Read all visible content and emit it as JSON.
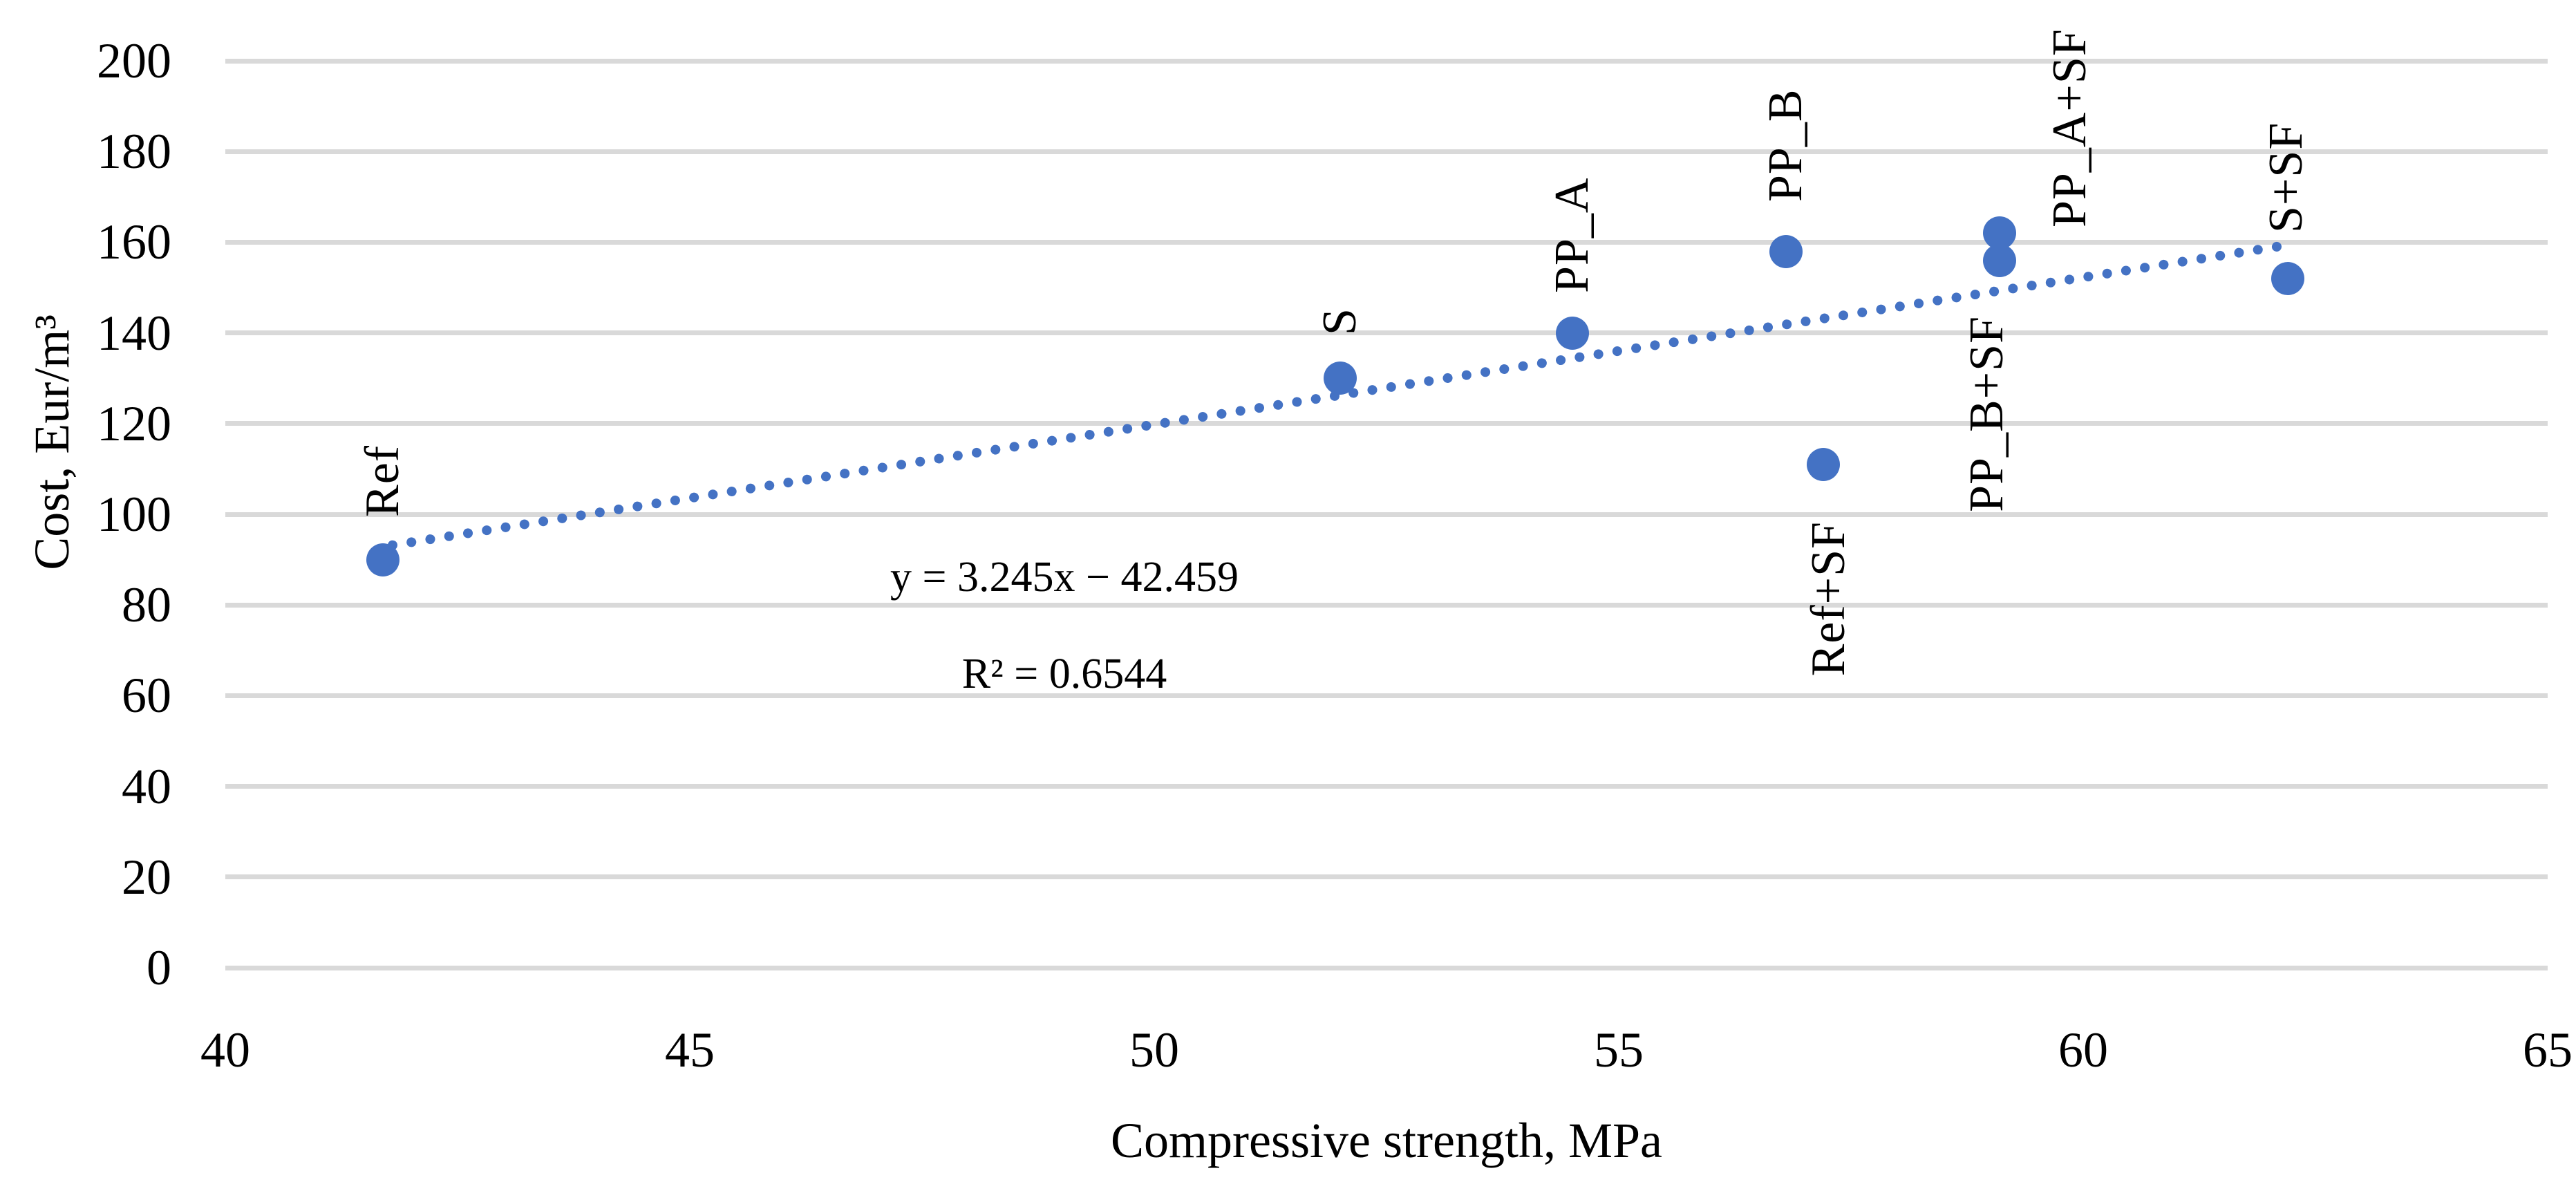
{
  "chart_data": {
    "type": "scatter",
    "title": "",
    "xlabel": "Compressive strength, MPa",
    "ylabel": "Cost, Eur/m³",
    "xlim": [
      40,
      65
    ],
    "ylim": [
      0,
      200
    ],
    "x_ticks": [
      40,
      45,
      50,
      55,
      60,
      65
    ],
    "y_ticks": [
      0,
      20,
      40,
      60,
      80,
      100,
      120,
      140,
      160,
      180,
      200
    ],
    "grid": "horizontal-only",
    "legend": "none",
    "points": [
      {
        "label": "Ref",
        "x": 41.7,
        "y": 90,
        "label_side": "above",
        "dx": 0,
        "gap": 62
      },
      {
        "label": "S",
        "x": 52.0,
        "y": 130,
        "label_side": "above",
        "dx": 0,
        "gap": 62
      },
      {
        "label": "PP_A",
        "x": 54.5,
        "y": 140,
        "label_side": "above",
        "dx": 0,
        "gap": 58
      },
      {
        "label": "PP_B",
        "x": 56.8,
        "y": 158,
        "label_side": "above",
        "dx": 0,
        "gap": 72
      },
      {
        "label": "Ref+SF",
        "x": 57.2,
        "y": 111,
        "label_side": "below",
        "dx": 8,
        "gap": 82
      },
      {
        "label": "PP_B+SF",
        "x": 59.1,
        "y": 156,
        "label_side": "below",
        "dx": -18,
        "gap": 80
      },
      {
        "label": "PP_A+SF",
        "x": 59.1,
        "y": 162,
        "label_side": "above",
        "dx": 102,
        "gap": 8
      },
      {
        "label": "S+SF",
        "x": 62.2,
        "y": 152,
        "label_side": "above",
        "dx": -2,
        "gap": 66
      }
    ],
    "trendline": {
      "style": "dotted",
      "slope": 3.245,
      "intercept": -42.459,
      "x_start": 41.8,
      "x_end": 62.1,
      "equation_text": "y = 3.245x − 42.459",
      "r2_text": "R² = 0.6544"
    },
    "colors": {
      "marker": "#4472C4",
      "trendline": "#4472C4",
      "gridline": "#D9D9D9",
      "text": "#000000",
      "background": "#ffffff"
    }
  },
  "annotation": {
    "line1": "y = 3.245x − 42.459",
    "line2": "R² = 0.6544"
  },
  "axes": {
    "x_title": "Compressive strength, MPa",
    "y_title": "Cost, Eur/m³"
  }
}
